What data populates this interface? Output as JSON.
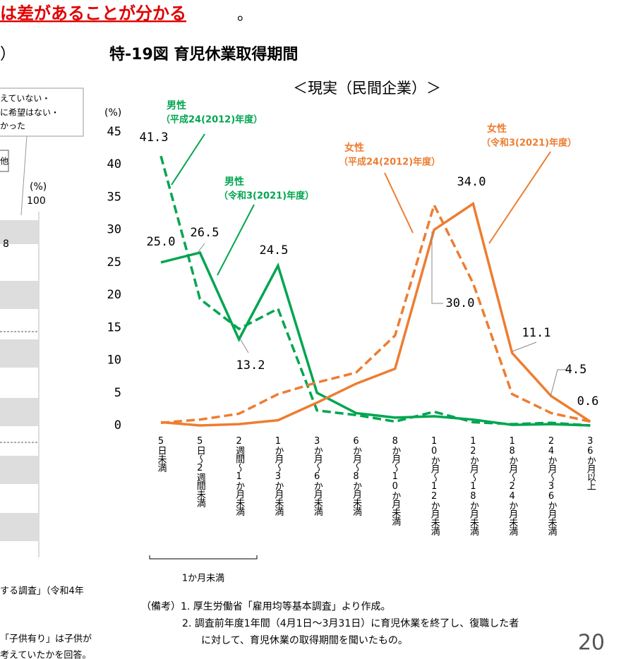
{
  "header": {
    "emphasis": "は差があることが分かる",
    "end": "。",
    "left_heading": "）"
  },
  "left_panel": {
    "legend_lines": [
      "えていない・",
      "に希望はない・",
      "かった"
    ],
    "legend_other": "他",
    "unit": "(%)",
    "max": "100",
    "bar_label": "8",
    "notes": [
      "する調査」（令和4年",
      "「子供有り」は子供が",
      "考えていたかを回答。"
    ]
  },
  "chart_data": {
    "type": "line",
    "title": "特-19図 育児休業取得期間",
    "subtitle": "＜現実（民間企業）＞",
    "y_unit": "(%)",
    "categories": [
      "5日未満",
      "5日～2週間未満",
      "2週間～1か月未満",
      "1か月～3か月未満",
      "3か月～6か月未満",
      "6か月～8か月未満",
      "8か月～10か月未満",
      "10か月～12か月未満",
      "12か月～18か月未満",
      "18か月～24か月未満",
      "24か月～36か月未満",
      "36か月以上"
    ],
    "group_label": "1か月未満",
    "ylim": [
      0,
      45
    ],
    "yticks": [
      0,
      5,
      10,
      15,
      20,
      25,
      30,
      35,
      40,
      45
    ],
    "series": [
      {
        "name": "男性",
        "period": "（平成24(2012)年度）",
        "color": "#00a550",
        "dash": true,
        "values": [
          41.3,
          19.4,
          14.8,
          17.9,
          2.3,
          1.6,
          0.6,
          2.1,
          0.5,
          0.2,
          0.4,
          0.0
        ],
        "value_labels": [
          "41.3",
          null,
          null,
          null,
          null,
          null,
          null,
          null,
          null,
          null,
          null,
          null
        ]
      },
      {
        "name": "男性",
        "period": "（令和3(2021)年度）",
        "color": "#00a550",
        "dash": false,
        "values": [
          25.0,
          26.5,
          13.2,
          24.5,
          5.0,
          1.9,
          1.2,
          1.4,
          0.9,
          0.1,
          0.2,
          0.0
        ],
        "value_labels": [
          "25.0",
          "26.5",
          "13.2",
          "24.5",
          null,
          null,
          null,
          null,
          null,
          null,
          null,
          null
        ]
      },
      {
        "name": "女性",
        "period": "（平成24(2012)年度）",
        "color": "#ed7d31",
        "dash": true,
        "values": [
          0.4,
          0.9,
          1.8,
          4.8,
          6.6,
          8.1,
          13.8,
          33.8,
          21.8,
          4.8,
          1.9,
          0.6
        ],
        "value_labels": [
          null,
          null,
          null,
          null,
          null,
          null,
          null,
          null,
          null,
          null,
          null,
          null
        ]
      },
      {
        "name": "女性",
        "period": "（令和3(2021)年度）",
        "color": "#ed7d31",
        "dash": false,
        "values": [
          0.5,
          0.0,
          0.2,
          0.8,
          3.5,
          6.4,
          8.7,
          30.0,
          34.0,
          11.1,
          4.5,
          0.6
        ],
        "value_labels": [
          null,
          null,
          null,
          null,
          null,
          null,
          null,
          "30.0",
          "34.0",
          "11.1",
          "4.5",
          "0.6"
        ]
      }
    ],
    "notes": [
      "（備考）1. 厚生労働省「雇用均等基本調査」より作成。",
      "2. 調査前年度1年間（4月1日～3月31日）に育児休業を終了し、復職した者",
      "に対して、育児休業の取得期間を聞いたもの。"
    ],
    "page_number": "20"
  }
}
